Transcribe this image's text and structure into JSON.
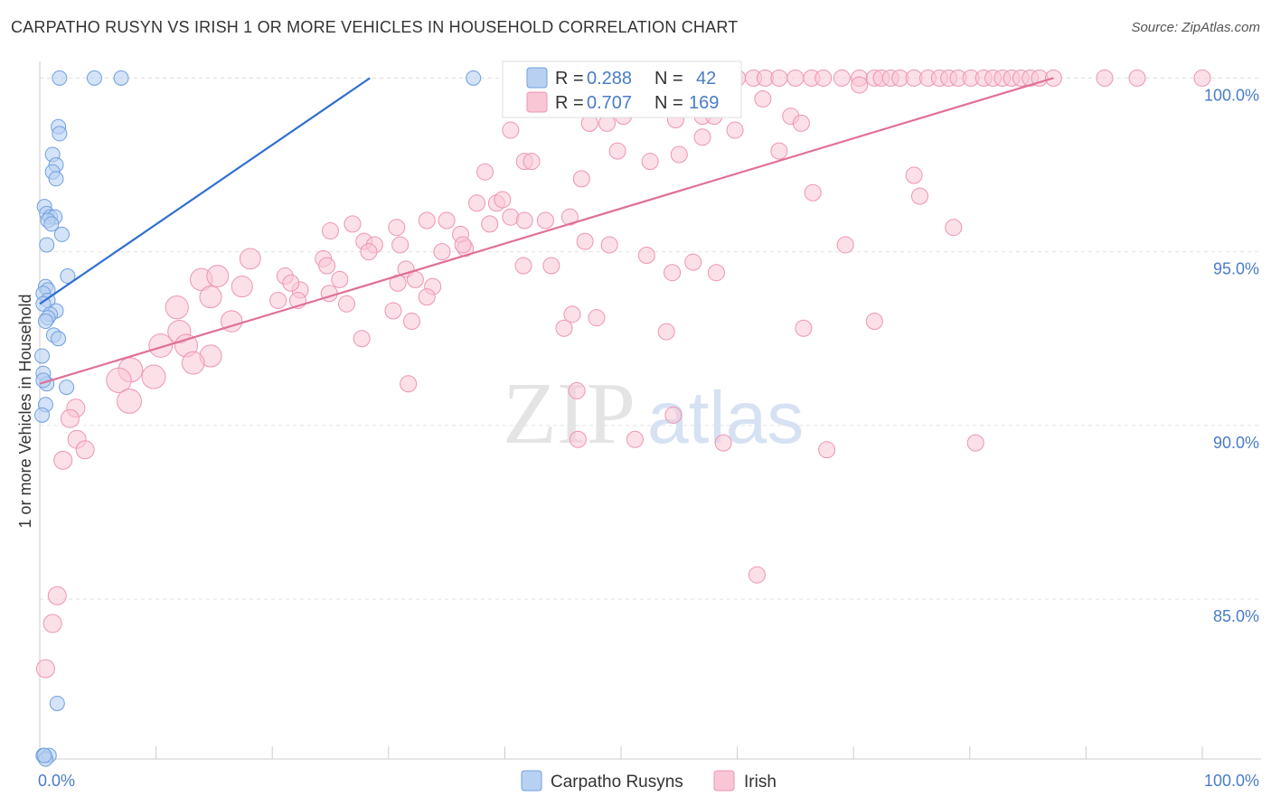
{
  "title": "CARPATHO RUSYN VS IRISH 1 OR MORE VEHICLES IN HOUSEHOLD CORRELATION CHART",
  "source": "Source: ZipAtlas.com",
  "watermark": {
    "zip": "ZIP",
    "atlas": "atlas"
  },
  "chart_data": {
    "type": "scatter",
    "title": "CARPATHO RUSYN VS IRISH 1 OR MORE VEHICLES IN HOUSEHOLD CORRELATION CHART",
    "xlabel": "",
    "ylabel": "1 or more Vehicles in Household",
    "xlim": [
      0,
      100
    ],
    "ylim": [
      80.4,
      100.4
    ],
    "x_tick_labels": [
      {
        "v": 0,
        "label": "0.0%"
      },
      {
        "v": 100,
        "label": "100.0%"
      }
    ],
    "y_ticks": [
      {
        "v": 85,
        "label": "85.0%"
      },
      {
        "v": 90,
        "label": "90.0%"
      },
      {
        "v": 95,
        "label": "95.0%"
      },
      {
        "v": 100,
        "label": "100.0%"
      }
    ],
    "legend": {
      "rows": [
        {
          "r_label": "R =",
          "r_value": "0.288",
          "n_label": "N =",
          "n_value": "42"
        },
        {
          "r_label": "R =",
          "r_value": "0.707",
          "n_label": "N =",
          "n_value": "169"
        }
      ]
    },
    "series": [
      {
        "name": "Carpatho Rusyns",
        "color": "#6fa0e0",
        "fill": "#b8d0f2",
        "trend": {
          "x0": 0,
          "y0": 93.5,
          "x1": 28.4,
          "y1": 100.0,
          "color": "#2f6fd0"
        },
        "points": [
          [
            1.7,
            100
          ],
          [
            4.7,
            100
          ],
          [
            7.0,
            100
          ],
          [
            37.3,
            100
          ],
          [
            1.6,
            98.6
          ],
          [
            1.7,
            98.4
          ],
          [
            1.1,
            97.8
          ],
          [
            1.4,
            97.5
          ],
          [
            1.1,
            97.3
          ],
          [
            1.4,
            97.1
          ],
          [
            0.4,
            96.3
          ],
          [
            0.6,
            96.1
          ],
          [
            0.9,
            96.0
          ],
          [
            1.3,
            96.0
          ],
          [
            0.7,
            95.9
          ],
          [
            1.0,
            95.8
          ],
          [
            1.9,
            95.5
          ],
          [
            0.6,
            95.2
          ],
          [
            2.4,
            94.3
          ],
          [
            0.5,
            94.0
          ],
          [
            0.7,
            93.9
          ],
          [
            0.3,
            93.8
          ],
          [
            0.7,
            93.6
          ],
          [
            0.3,
            93.5
          ],
          [
            1.4,
            93.3
          ],
          [
            0.9,
            93.2
          ],
          [
            0.7,
            93.1
          ],
          [
            0.5,
            93.0
          ],
          [
            1.2,
            92.6
          ],
          [
            1.6,
            92.5
          ],
          [
            0.2,
            92.0
          ],
          [
            0.3,
            91.5
          ],
          [
            0.6,
            91.2
          ],
          [
            0.3,
            91.3
          ],
          [
            2.3,
            91.1
          ],
          [
            0.5,
            90.6
          ],
          [
            0.2,
            90.3
          ],
          [
            1.5,
            82.0
          ],
          [
            0.3,
            80.5
          ],
          [
            0.8,
            80.5
          ],
          [
            0.5,
            80.4
          ],
          [
            0.4,
            80.5
          ]
        ]
      },
      {
        "name": "Irish",
        "color": "#ee94b4",
        "fill": "#f9c6d6",
        "trend": {
          "x0": 0,
          "y0": 91.2,
          "x1": 87.2,
          "y1": 100.0,
          "color": "#e07098"
        },
        "points": [
          [
            43.4,
            100
          ],
          [
            45.0,
            100
          ],
          [
            46.6,
            100
          ],
          [
            48.0,
            100
          ],
          [
            49.2,
            100
          ],
          [
            50.8,
            100
          ],
          [
            52.2,
            100
          ],
          [
            53.6,
            100
          ],
          [
            55.0,
            100
          ],
          [
            56.6,
            100
          ],
          [
            58.3,
            100
          ],
          [
            60.0,
            100
          ],
          [
            61.4,
            100
          ],
          [
            62.4,
            100
          ],
          [
            63.6,
            100
          ],
          [
            65.0,
            100
          ],
          [
            66.4,
            100
          ],
          [
            67.4,
            100
          ],
          [
            69.0,
            100
          ],
          [
            70.5,
            100
          ],
          [
            71.8,
            100
          ],
          [
            72.4,
            100
          ],
          [
            73.2,
            100
          ],
          [
            74.0,
            100
          ],
          [
            75.2,
            100
          ],
          [
            76.4,
            100
          ],
          [
            77.4,
            100
          ],
          [
            78.2,
            100
          ],
          [
            79.0,
            100
          ],
          [
            80.1,
            100
          ],
          [
            81.2,
            100
          ],
          [
            82.0,
            100
          ],
          [
            82.8,
            100
          ],
          [
            83.6,
            100
          ],
          [
            84.4,
            100
          ],
          [
            85.2,
            100
          ],
          [
            86.0,
            100
          ],
          [
            87.2,
            100
          ],
          [
            91.6,
            100
          ],
          [
            94.4,
            100
          ],
          [
            100.0,
            100
          ],
          [
            55.5,
            99.8
          ],
          [
            70.5,
            99.8
          ],
          [
            49.5,
            99.6
          ],
          [
            62.2,
            99.4
          ],
          [
            52.6,
            99.2
          ],
          [
            50.2,
            98.9
          ],
          [
            64.6,
            98.9
          ],
          [
            57.0,
            98.9
          ],
          [
            58.0,
            98.9
          ],
          [
            54.7,
            98.8
          ],
          [
            65.5,
            98.7
          ],
          [
            59.8,
            98.5
          ],
          [
            48.8,
            98.7
          ],
          [
            47.3,
            98.7
          ],
          [
            40.5,
            98.5
          ],
          [
            57.0,
            98.3
          ],
          [
            63.6,
            97.9
          ],
          [
            49.7,
            97.9
          ],
          [
            55.0,
            97.8
          ],
          [
            52.5,
            97.6
          ],
          [
            41.7,
            97.6
          ],
          [
            42.3,
            97.6
          ],
          [
            38.3,
            97.3
          ],
          [
            46.6,
            97.1
          ],
          [
            75.2,
            97.2
          ],
          [
            66.5,
            96.7
          ],
          [
            75.7,
            96.6
          ],
          [
            37.6,
            96.4
          ],
          [
            39.3,
            96.4
          ],
          [
            39.8,
            96.5
          ],
          [
            40.5,
            96.0
          ],
          [
            41.7,
            95.9
          ],
          [
            43.5,
            95.9
          ],
          [
            45.6,
            96.0
          ],
          [
            33.3,
            95.9
          ],
          [
            35.0,
            95.9
          ],
          [
            38.7,
            95.8
          ],
          [
            26.9,
            95.8
          ],
          [
            30.7,
            95.7
          ],
          [
            36.2,
            95.5
          ],
          [
            25.0,
            95.6
          ],
          [
            27.9,
            95.3
          ],
          [
            28.8,
            95.2
          ],
          [
            31.0,
            95.2
          ],
          [
            46.9,
            95.3
          ],
          [
            36.6,
            95.1
          ],
          [
            36.4,
            95.2
          ],
          [
            49.0,
            95.2
          ],
          [
            69.3,
            95.2
          ],
          [
            78.6,
            95.7
          ],
          [
            34.6,
            95.0
          ],
          [
            28.3,
            95.0
          ],
          [
            24.4,
            94.8
          ],
          [
            18.1,
            94.8
          ],
          [
            24.7,
            94.6
          ],
          [
            44.0,
            94.6
          ],
          [
            41.6,
            94.6
          ],
          [
            52.2,
            94.9
          ],
          [
            56.2,
            94.7
          ],
          [
            54.4,
            94.4
          ],
          [
            58.2,
            94.4
          ],
          [
            31.5,
            94.5
          ],
          [
            25.8,
            94.2
          ],
          [
            32.3,
            94.2
          ],
          [
            33.8,
            94.0
          ],
          [
            30.8,
            94.1
          ],
          [
            33.3,
            93.7
          ],
          [
            21.1,
            94.3
          ],
          [
            13.9,
            94.2
          ],
          [
            22.4,
            93.9
          ],
          [
            15.3,
            94.3
          ],
          [
            21.6,
            94.1
          ],
          [
            24.9,
            93.8
          ],
          [
            14.7,
            93.7
          ],
          [
            17.4,
            94.0
          ],
          [
            20.5,
            93.6
          ],
          [
            22.2,
            93.6
          ],
          [
            26.4,
            93.5
          ],
          [
            30.4,
            93.3
          ],
          [
            45.8,
            93.2
          ],
          [
            47.9,
            93.1
          ],
          [
            32.0,
            93.0
          ],
          [
            45.1,
            92.8
          ],
          [
            53.9,
            92.7
          ],
          [
            65.7,
            92.8
          ],
          [
            71.8,
            93.0
          ],
          [
            11.8,
            93.4
          ],
          [
            16.5,
            93.0
          ],
          [
            12.0,
            92.7
          ],
          [
            12.6,
            92.3
          ],
          [
            10.4,
            92.3
          ],
          [
            14.7,
            92.0
          ],
          [
            13.2,
            91.8
          ],
          [
            9.8,
            91.4
          ],
          [
            7.8,
            91.6
          ],
          [
            6.8,
            91.3
          ],
          [
            27.7,
            92.5
          ],
          [
            31.7,
            91.2
          ],
          [
            46.2,
            91.0
          ],
          [
            7.7,
            90.7
          ],
          [
            3.1,
            90.5
          ],
          [
            54.5,
            90.3
          ],
          [
            2.6,
            90.2
          ],
          [
            3.2,
            89.6
          ],
          [
            3.9,
            89.3
          ],
          [
            46.3,
            89.6
          ],
          [
            51.2,
            89.6
          ],
          [
            58.8,
            89.5
          ],
          [
            67.7,
            89.3
          ],
          [
            80.5,
            89.5
          ],
          [
            2.0,
            89.0
          ],
          [
            61.7,
            85.7
          ],
          [
            1.5,
            85.1
          ],
          [
            1.1,
            84.3
          ],
          [
            0.5,
            83.0
          ]
        ],
        "sizes": {
          "large_until_x": 20
        }
      }
    ]
  },
  "bottom_legend": [
    {
      "label": "Carpatho Rusyns",
      "color": "#b8d0f2"
    },
    {
      "label": "Irish",
      "color": "#f9c6d6"
    }
  ]
}
